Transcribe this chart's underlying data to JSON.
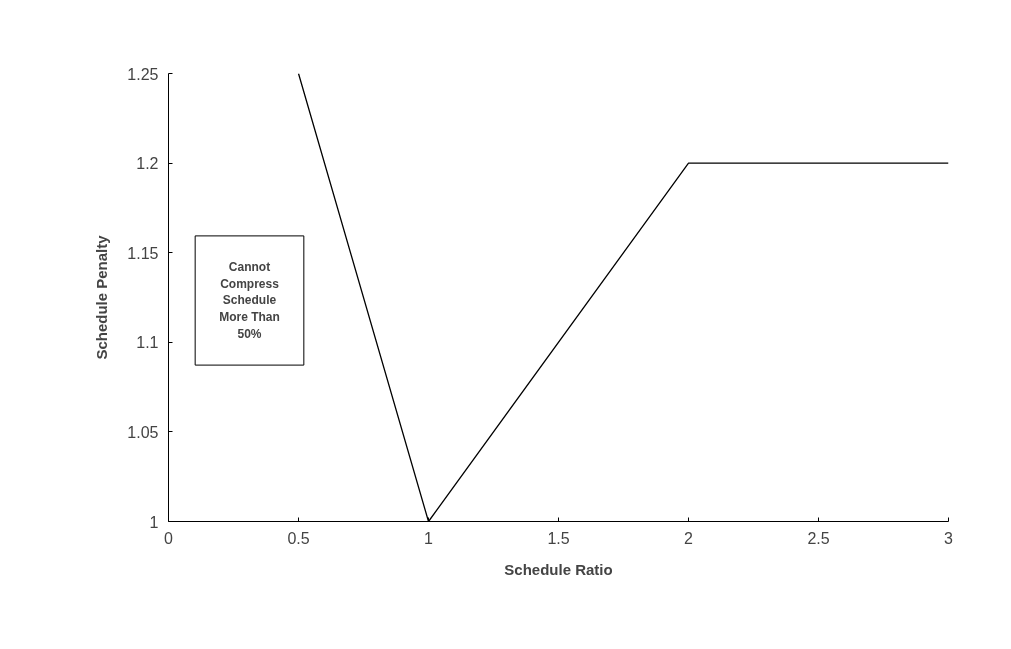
{
  "chart_data": {
    "type": "line",
    "xlabel": "Schedule Ratio",
    "ylabel": "Schedule Penalty",
    "x": [
      0.5,
      1,
      2,
      3
    ],
    "series": [
      {
        "color": "#000000",
        "values": [
          1.25,
          1,
          1.2,
          1.2
        ]
      }
    ],
    "xlim": [
      0,
      3
    ],
    "xticks": [
      0,
      0.5,
      1,
      1.5,
      2,
      2.5,
      3
    ],
    "ylim": [
      1,
      1.25
    ],
    "yticks": [
      1,
      1.05,
      1.1,
      1.15,
      1.2,
      1.25
    ],
    "grid": false,
    "marker": "none",
    "line_style": "solid",
    "annotations": [
      "Cannot Compress Schedule More Than 50%"
    ]
  }
}
